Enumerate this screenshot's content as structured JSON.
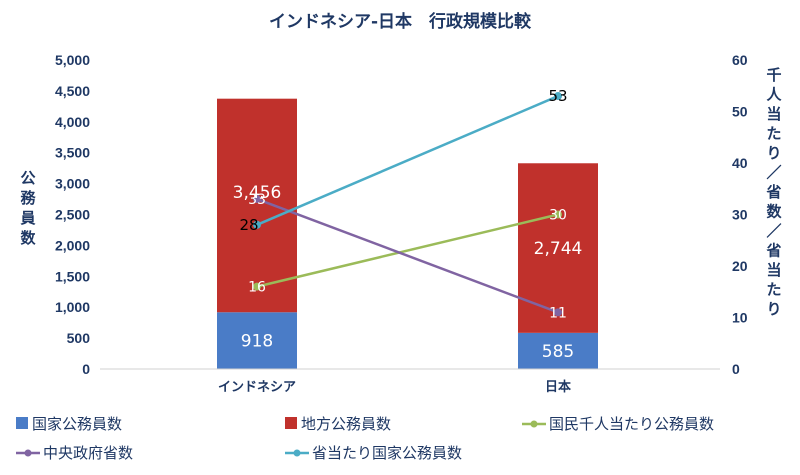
{
  "chart_data": {
    "type": "bar",
    "title": "インドネシア-日本　行政規模比較",
    "categories": [
      "インドネシア",
      "日本"
    ],
    "ylabel": "公務員数",
    "y2label": "千人当たり／省数／省当たり",
    "ylim": [
      0,
      5000
    ],
    "y2lim": [
      0,
      60
    ],
    "yticks": [
      "0",
      "500",
      "1,000",
      "1,500",
      "2,000",
      "2,500",
      "3,000",
      "3,500",
      "4,000",
      "4,500",
      "5,000"
    ],
    "y2ticks": [
      "0",
      "10",
      "20",
      "30",
      "40",
      "50",
      "60"
    ],
    "bar_series": [
      {
        "name": "国家公務員数",
        "values": [
          918,
          585
        ],
        "labels": [
          "918",
          "585"
        ],
        "color": "#4a7cc7"
      },
      {
        "name": "地方公務員数",
        "values": [
          3456,
          2744
        ],
        "labels": [
          "3,456",
          "2,744"
        ],
        "color": "#c0312c"
      }
    ],
    "line_series": [
      {
        "name": "国民千人当たり公務員数",
        "values": [
          16,
          30
        ],
        "labels": [
          "16",
          "30"
        ],
        "color": "#9bbb59"
      },
      {
        "name": "中央政府省数",
        "values": [
          33,
          11
        ],
        "labels": [
          "33",
          "11"
        ],
        "color": "#8064a2"
      },
      {
        "name": "省当たり国家公務員数",
        "values": [
          28,
          53
        ],
        "labels": [
          "28",
          "53"
        ],
        "color": "#4bacc6"
      }
    ],
    "grid": false,
    "legend": "bottom"
  }
}
